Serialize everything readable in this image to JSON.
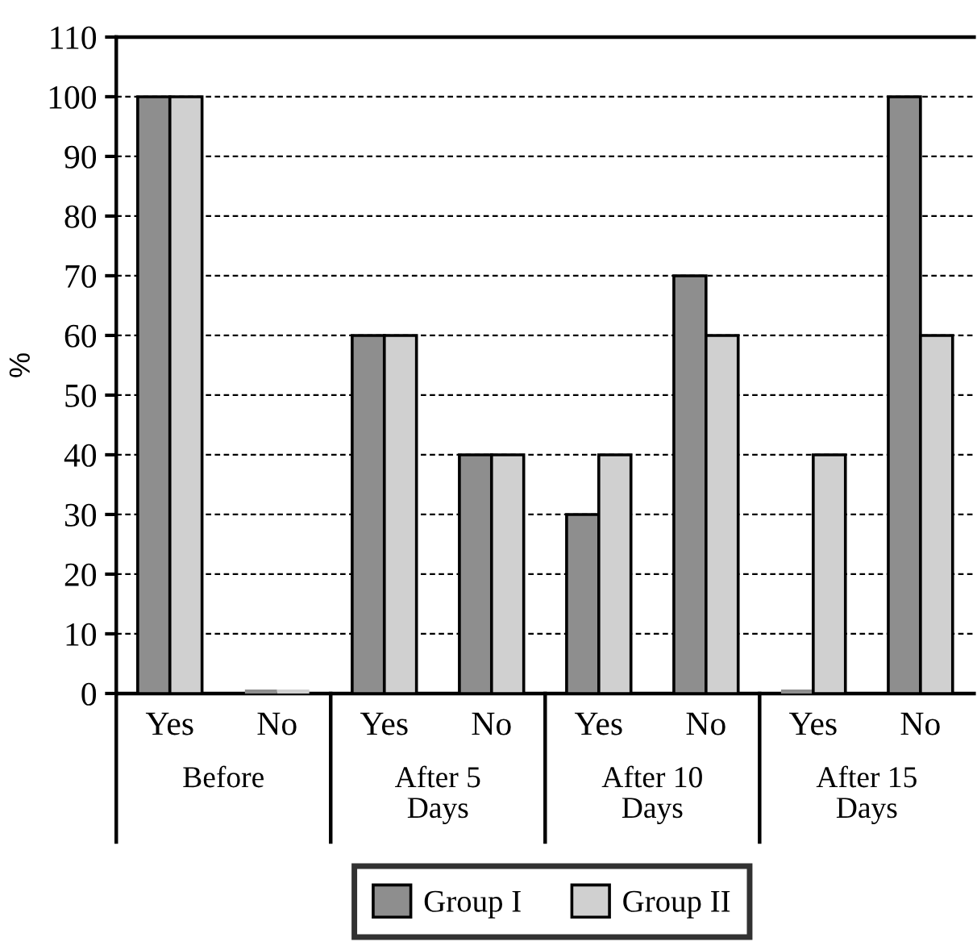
{
  "chart_data": {
    "type": "bar",
    "ylabel": "%",
    "categories": [
      "Yes",
      "No",
      "Yes",
      "No",
      "Yes",
      "No",
      "Yes",
      "No"
    ],
    "annotations": [
      "Before",
      "After 5\nDays",
      "After 10\nDays",
      "After 15\nDays"
    ],
    "series": [
      {
        "name": "Group I",
        "color": "#8e8e8e",
        "values": [
          100,
          0,
          60,
          40,
          30,
          70,
          0,
          100
        ]
      },
      {
        "name": "Group II",
        "color": "#d0d0d0",
        "values": [
          100,
          0,
          60,
          40,
          40,
          60,
          40,
          60
        ]
      }
    ],
    "ylim": [
      0,
      110
    ],
    "yticks": [
      0,
      10,
      20,
      30,
      40,
      50,
      60,
      70,
      80,
      90,
      100,
      110
    ],
    "grid": "y",
    "legend": "bottom"
  }
}
